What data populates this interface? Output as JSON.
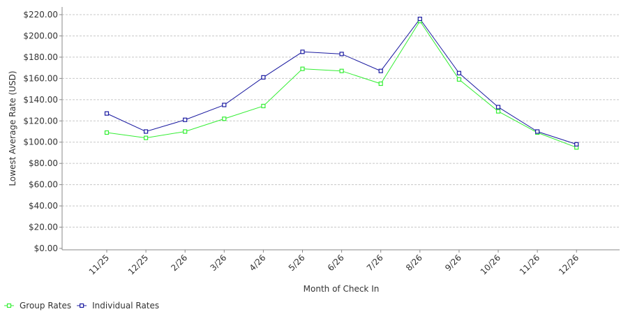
{
  "chart_data": {
    "type": "line",
    "title": "",
    "xlabel": "Month of Check In",
    "ylabel": "Lowest Average Rate (USD)",
    "ylim": [
      0,
      220
    ],
    "y_ticks": [
      0,
      20,
      40,
      60,
      80,
      100,
      120,
      140,
      160,
      180,
      200,
      220
    ],
    "y_tick_labels": [
      "$0.00",
      "$20.00",
      "$40.00",
      "$60.00",
      "$80.00",
      "$100.00",
      "$120.00",
      "$140.00",
      "$160.00",
      "$180.00",
      "$200.00",
      "$220.00"
    ],
    "categories": [
      "11/25",
      "12/25",
      "2/26",
      "3/26",
      "4/26",
      "5/26",
      "6/26",
      "7/26",
      "8/26",
      "9/26",
      "10/26",
      "11/26",
      "12/26"
    ],
    "grid": true,
    "legend_position": "bottom-left",
    "series": [
      {
        "name": "Group Rates",
        "color": "#33ee33",
        "values": [
          109,
          104,
          110,
          122,
          134,
          169,
          167,
          155,
          214,
          159,
          129,
          109,
          95
        ]
      },
      {
        "name": "Individual Rates",
        "color": "#1a1aa0",
        "values": [
          127,
          110,
          121,
          135,
          161,
          185,
          183,
          167,
          216,
          165,
          133,
          110,
          98
        ]
      }
    ]
  }
}
